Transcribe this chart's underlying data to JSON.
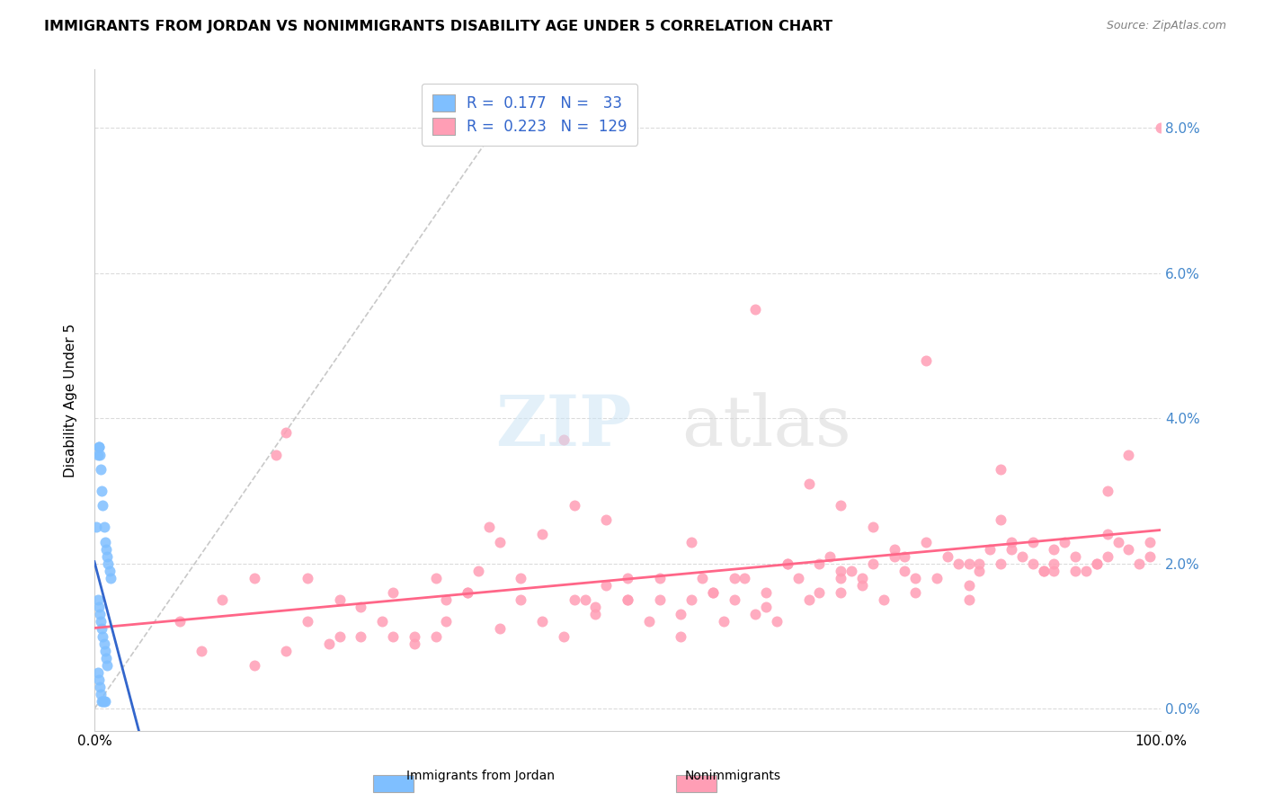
{
  "title": "IMMIGRANTS FROM JORDAN VS NONIMMIGRANTS DISABILITY AGE UNDER 5 CORRELATION CHART",
  "source": "Source: ZipAtlas.com",
  "ylabel": "Disability Age Under 5",
  "color_blue": "#7fbfff",
  "color_blue_line": "#3366cc",
  "color_pink": "#ff9eb5",
  "color_pink_line": "#ff6688",
  "color_diag": "#bbbbbb",
  "blue_scatter_x": [
    0.2,
    0.3,
    0.3,
    0.3,
    0.4,
    0.4,
    0.4,
    0.5,
    0.5,
    0.5,
    0.6,
    0.6,
    0.6,
    0.7,
    0.7,
    0.7,
    0.8,
    0.8,
    0.8,
    0.9,
    0.9,
    0.9,
    1.0,
    1.0,
    1.0,
    1.1,
    1.1,
    1.2,
    1.2,
    1.3,
    1.4,
    1.5,
    0.4
  ],
  "blue_scatter_y": [
    2.5,
    3.5,
    1.5,
    0.5,
    3.6,
    1.4,
    0.4,
    3.5,
    1.3,
    0.3,
    3.3,
    1.2,
    0.2,
    3.0,
    1.1,
    0.1,
    2.8,
    1.0,
    0.1,
    2.5,
    0.9,
    0.1,
    2.3,
    0.8,
    0.1,
    2.2,
    0.7,
    2.1,
    0.6,
    2.0,
    1.9,
    1.8,
    3.6
  ],
  "pink_scatter_x": [
    8,
    10,
    12,
    15,
    17,
    18,
    20,
    22,
    23,
    25,
    27,
    28,
    30,
    32,
    33,
    35,
    37,
    38,
    40,
    42,
    44,
    45,
    46,
    47,
    48,
    50,
    52,
    53,
    55,
    56,
    57,
    58,
    59,
    60,
    61,
    62,
    63,
    64,
    65,
    66,
    67,
    68,
    69,
    70,
    71,
    72,
    73,
    74,
    75,
    76,
    77,
    78,
    79,
    80,
    81,
    82,
    83,
    84,
    85,
    86,
    87,
    88,
    89,
    90,
    91,
    92,
    93,
    94,
    95,
    96,
    97,
    98,
    99,
    100,
    20,
    35,
    48,
    53,
    65,
    70,
    76,
    82,
    86,
    90,
    94,
    99,
    28,
    38,
    55,
    70,
    83,
    95,
    50,
    67,
    44,
    15,
    25,
    30,
    45,
    63,
    77,
    89,
    72,
    58,
    32,
    85,
    70,
    23,
    40,
    60,
    75,
    85,
    90,
    95,
    50,
    68,
    82,
    97,
    42,
    78,
    62,
    88,
    73,
    56,
    18,
    33,
    47,
    92,
    36
  ],
  "pink_scatter_y": [
    1.2,
    0.8,
    1.5,
    1.8,
    3.5,
    0.8,
    1.2,
    0.9,
    1.5,
    1.0,
    1.2,
    1.6,
    1.0,
    1.8,
    1.5,
    1.6,
    2.5,
    2.3,
    1.5,
    1.2,
    1.0,
    2.8,
    1.5,
    1.3,
    2.6,
    1.8,
    1.2,
    1.8,
    1.3,
    1.5,
    1.8,
    1.6,
    1.2,
    1.5,
    1.8,
    1.3,
    1.6,
    1.2,
    2.0,
    1.8,
    1.5,
    1.6,
    2.1,
    1.8,
    1.9,
    1.7,
    2.0,
    1.5,
    2.2,
    1.9,
    1.6,
    2.3,
    1.8,
    2.1,
    2.0,
    1.7,
    1.9,
    2.2,
    2.0,
    2.3,
    2.1,
    2.0,
    1.9,
    2.2,
    2.3,
    2.1,
    1.9,
    2.0,
    2.4,
    2.3,
    2.2,
    2.0,
    2.1,
    8.0,
    1.8,
    1.6,
    1.7,
    1.5,
    2.0,
    1.9,
    2.1,
    2.0,
    2.2,
    1.9,
    2.0,
    2.3,
    1.0,
    1.1,
    1.0,
    1.6,
    2.0,
    2.1,
    1.5,
    3.1,
    3.7,
    0.6,
    1.4,
    0.9,
    1.5,
    1.4,
    1.8,
    1.9,
    1.8,
    1.6,
    1.0,
    2.6,
    2.8,
    1.0,
    1.8,
    1.8,
    2.1,
    3.3,
    2.0,
    3.0,
    1.5,
    2.0,
    1.5,
    3.5,
    2.4,
    4.8,
    5.5,
    2.3,
    2.5,
    2.3,
    3.8,
    1.2,
    1.4,
    1.9,
    1.9
  ]
}
